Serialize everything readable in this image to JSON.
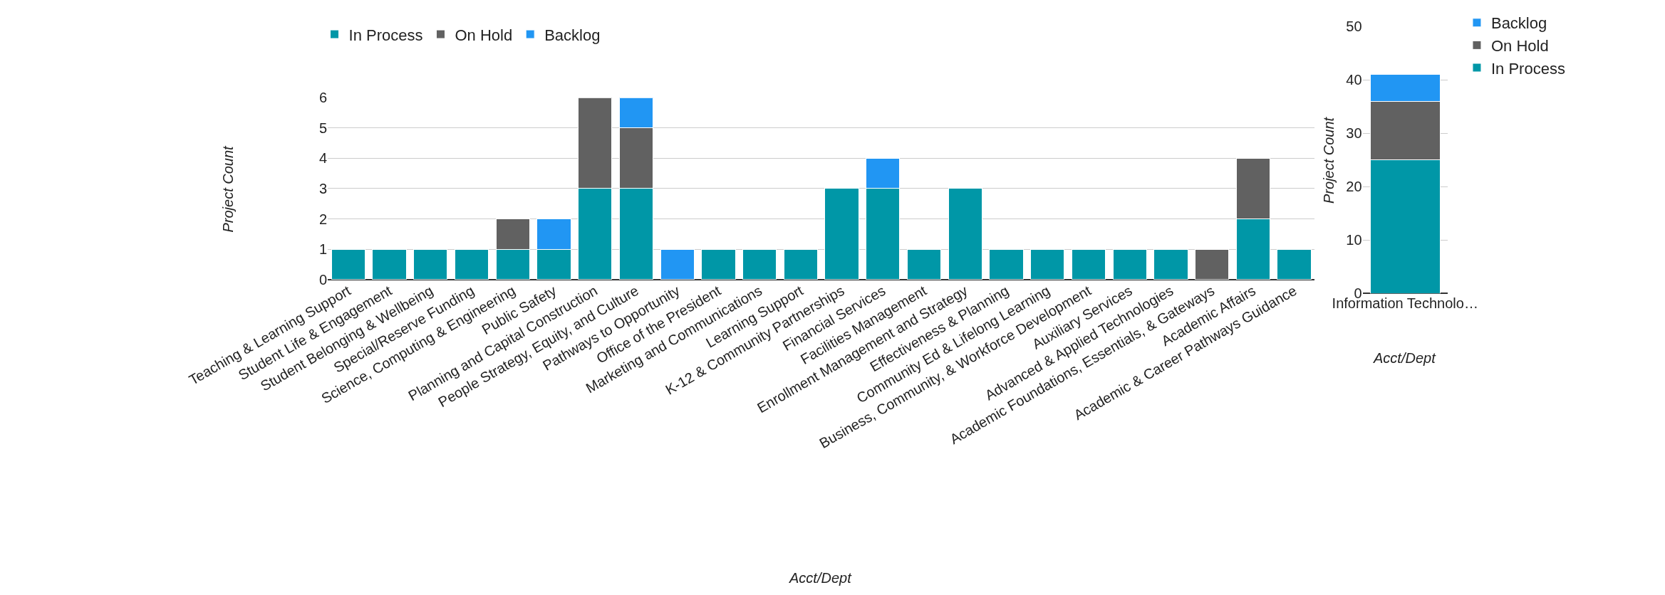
{
  "chart_data": [
    {
      "type": "bar",
      "stacked": true,
      "xlabel": "Acct/Dept",
      "ylabel": "Project Count",
      "categories": [
        "Teaching & Learning Support",
        "Student Life & Engagement",
        "Student Belonging & Wellbeing",
        "Special/Reserve Funding",
        "Science, Computing & Engineering",
        "Public Safety",
        "Planning and Capital Construction",
        "People Strategy, Equity, and Culture",
        "Pathways to Opportunity",
        "Office of the President",
        "Marketing and Communications",
        "Learning Support",
        "K-12 & Community Partnerships",
        "Financial Services",
        "Facilities Management",
        "Enrollment Management and Strategy",
        "Effectiveness & Planning",
        "Community Ed & Lifelong Learning",
        "Business, Community, & Workforce Development",
        "Auxiliary Services",
        "Advanced & Applied Technologies",
        "Academic Foundations, Essentials, & Gateways",
        "Academic Affairs",
        "Academic & Career Pathways Guidance"
      ],
      "series": [
        {
          "name": "In Process",
          "color": "#0097a7",
          "values": [
            1,
            1,
            1,
            1,
            1,
            1,
            3,
            3,
            null,
            1,
            1,
            1,
            3,
            3,
            1,
            3,
            1,
            1,
            1,
            1,
            1,
            null,
            2,
            1
          ]
        },
        {
          "name": "On Hold",
          "color": "#616161",
          "values": [
            null,
            null,
            null,
            null,
            1,
            null,
            3,
            2,
            null,
            null,
            null,
            null,
            null,
            null,
            null,
            null,
            null,
            null,
            null,
            null,
            null,
            1,
            2,
            null
          ]
        },
        {
          "name": "Backlog",
          "color": "#2196f3",
          "values": [
            null,
            null,
            null,
            null,
            null,
            1,
            null,
            1,
            1,
            null,
            null,
            null,
            null,
            1,
            null,
            null,
            null,
            null,
            null,
            null,
            null,
            null,
            null,
            null
          ]
        }
      ],
      "ylim": [
        0,
        6
      ],
      "yticks": [
        0,
        1,
        2,
        3,
        4,
        5,
        6
      ],
      "grid": "y",
      "legend": "top left"
    },
    {
      "type": "bar",
      "stacked": true,
      "xlabel": "Acct/Dept",
      "ylabel": "Project Count",
      "categories": [
        "Information Technolo…"
      ],
      "series": [
        {
          "name": "In Process",
          "color": "#0097a7",
          "values": [
            25
          ]
        },
        {
          "name": "On Hold",
          "color": "#616161",
          "values": [
            11
          ]
        },
        {
          "name": "Backlog",
          "color": "#2196f3",
          "values": [
            5
          ]
        }
      ],
      "ylim": [
        0,
        50
      ],
      "yticks": [
        0,
        10,
        20,
        30,
        40,
        50
      ],
      "grid": "y",
      "legend": "top right"
    }
  ]
}
